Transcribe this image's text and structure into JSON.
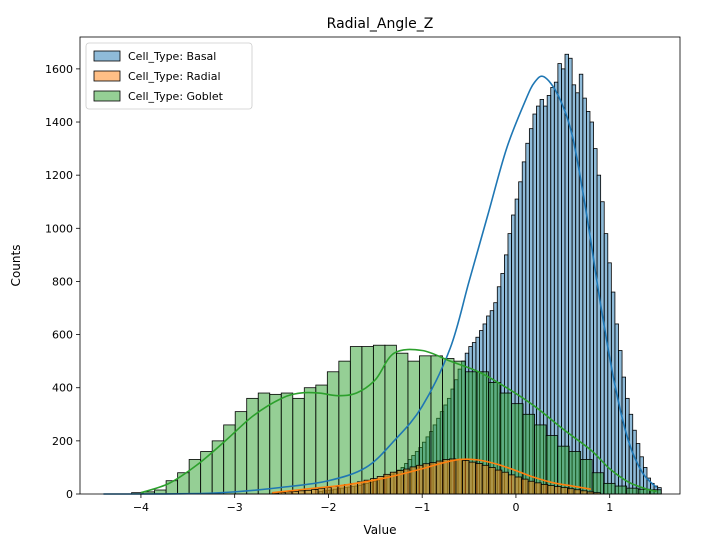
{
  "chart_data": {
    "type": "histogram",
    "title": "Radial_Angle_Z",
    "xlabel": "Value",
    "ylabel": "Counts",
    "xlim": [
      -4.65,
      1.75
    ],
    "ylim": [
      0,
      1720
    ],
    "xticks": [
      -4,
      -3,
      -2,
      -1,
      0,
      1
    ],
    "xtick_labels": [
      "−4",
      "−3",
      "−2",
      "−1",
      "0",
      "1"
    ],
    "yticks": [
      0,
      200,
      400,
      600,
      800,
      1000,
      1200,
      1400,
      1600
    ],
    "ytick_labels": [
      "0",
      "200",
      "400",
      "600",
      "800",
      "1000",
      "1200",
      "1400",
      "1600"
    ],
    "grid": false,
    "legend_location": "upper left",
    "legend": [
      {
        "label": "Cell_Type: Basal",
        "color": "#1f77b4"
      },
      {
        "label": "Cell_Type: Radial",
        "color": "#ff7f0e"
      },
      {
        "label": "Cell_Type: Goblet",
        "color": "#2ca02c"
      }
    ],
    "series": [
      {
        "name": "Cell_Type: Basal",
        "color": "#1f77b4",
        "bin_edges": [
          -2.1,
          1.55
        ],
        "counts": [
          10,
          12,
          14,
          15,
          18,
          20,
          22,
          24,
          26,
          28,
          30,
          33,
          36,
          40,
          44,
          48,
          52,
          57,
          62,
          68,
          75,
          82,
          90,
          100,
          115,
          130,
          145,
          160,
          175,
          195,
          215,
          235,
          260,
          285,
          310,
          335,
          360,
          395,
          430,
          470,
          500,
          530,
          555,
          570,
          590,
          615,
          640,
          670,
          690,
          720,
          780,
          830,
          900,
          980,
          1050,
          1110,
          1175,
          1250,
          1320,
          1375,
          1430,
          1460,
          1485,
          1460,
          1500,
          1530,
          1550,
          1620,
          1600,
          1655,
          1640,
          1540,
          1510,
          1580,
          1490,
          1440,
          1400,
          1300,
          1200,
          1100,
          980,
          870,
          760,
          640,
          540,
          440,
          360,
          300,
          240,
          190,
          140,
          100,
          60,
          40,
          30,
          24
        ]
      },
      {
        "name": "Cell_Type: Goblet",
        "color": "#2ca02c",
        "bin_edges": [
          -4.1,
          1.55
        ],
        "counts": [
          5,
          8,
          15,
          50,
          80,
          130,
          160,
          200,
          260,
          310,
          360,
          380,
          375,
          380,
          360,
          400,
          410,
          460,
          500,
          555,
          555,
          560,
          560,
          530,
          500,
          520,
          520,
          510,
          500,
          460,
          460,
          420,
          380,
          340,
          300,
          260,
          220,
          180,
          160,
          130,
          80,
          40,
          30,
          22,
          18,
          16
        ]
      },
      {
        "name": "Cell_Type: Radial",
        "color": "#ff7f0e",
        "bin_edges": [
          -2.6,
          0.9
        ],
        "counts": [
          4,
          6,
          8,
          10,
          12,
          14,
          17,
          20,
          24,
          28,
          32,
          36,
          40,
          46,
          52,
          58,
          66,
          74,
          82,
          88,
          94,
          102,
          108,
          114,
          118,
          124,
          130,
          132,
          130,
          126,
          120,
          115,
          108,
          100,
          90,
          82,
          72,
          64,
          56,
          48,
          42,
          36,
          32,
          28,
          24,
          20,
          16,
          12,
          8,
          5
        ]
      }
    ],
    "kde": [
      {
        "name": "Cell_Type: Basal",
        "color": "#1f77b4",
        "x": [
          -4.4,
          -3.5,
          -3.0,
          -2.5,
          -2.0,
          -1.6,
          -1.3,
          -1.0,
          -0.7,
          -0.5,
          -0.3,
          -0.1,
          0.1,
          0.2,
          0.3,
          0.45,
          0.6,
          0.75,
          0.9,
          1.05,
          1.2,
          1.35,
          1.5
        ],
        "y": [
          0,
          1,
          8,
          25,
          50,
          100,
          200,
          330,
          550,
          800,
          1050,
          1300,
          1480,
          1550,
          1570,
          1500,
          1350,
          1060,
          720,
          420,
          200,
          80,
          25
        ]
      },
      {
        "name": "Cell_Type: Goblet",
        "color": "#2ca02c",
        "x": [
          -4.0,
          -3.7,
          -3.4,
          -3.1,
          -2.8,
          -2.5,
          -2.3,
          -2.1,
          -1.9,
          -1.7,
          -1.5,
          -1.3,
          -1.0,
          -0.7,
          -0.4,
          -0.1,
          0.2,
          0.5,
          0.8,
          1.0,
          1.2,
          1.4,
          1.5
        ],
        "y": [
          5,
          40,
          110,
          200,
          295,
          360,
          380,
          380,
          370,
          380,
          430,
          530,
          540,
          500,
          460,
          400,
          330,
          245,
          165,
          95,
          45,
          18,
          10
        ]
      },
      {
        "name": "Cell_Type: Radial",
        "color": "#ff7f0e",
        "x": [
          -2.6,
          -2.2,
          -1.8,
          -1.4,
          -1.0,
          -0.8,
          -0.6,
          -0.4,
          -0.2,
          0.0,
          0.2,
          0.4,
          0.6,
          0.8
        ],
        "y": [
          5,
          20,
          35,
          60,
          95,
          115,
          130,
          128,
          112,
          88,
          62,
          42,
          30,
          18
        ]
      }
    ]
  }
}
